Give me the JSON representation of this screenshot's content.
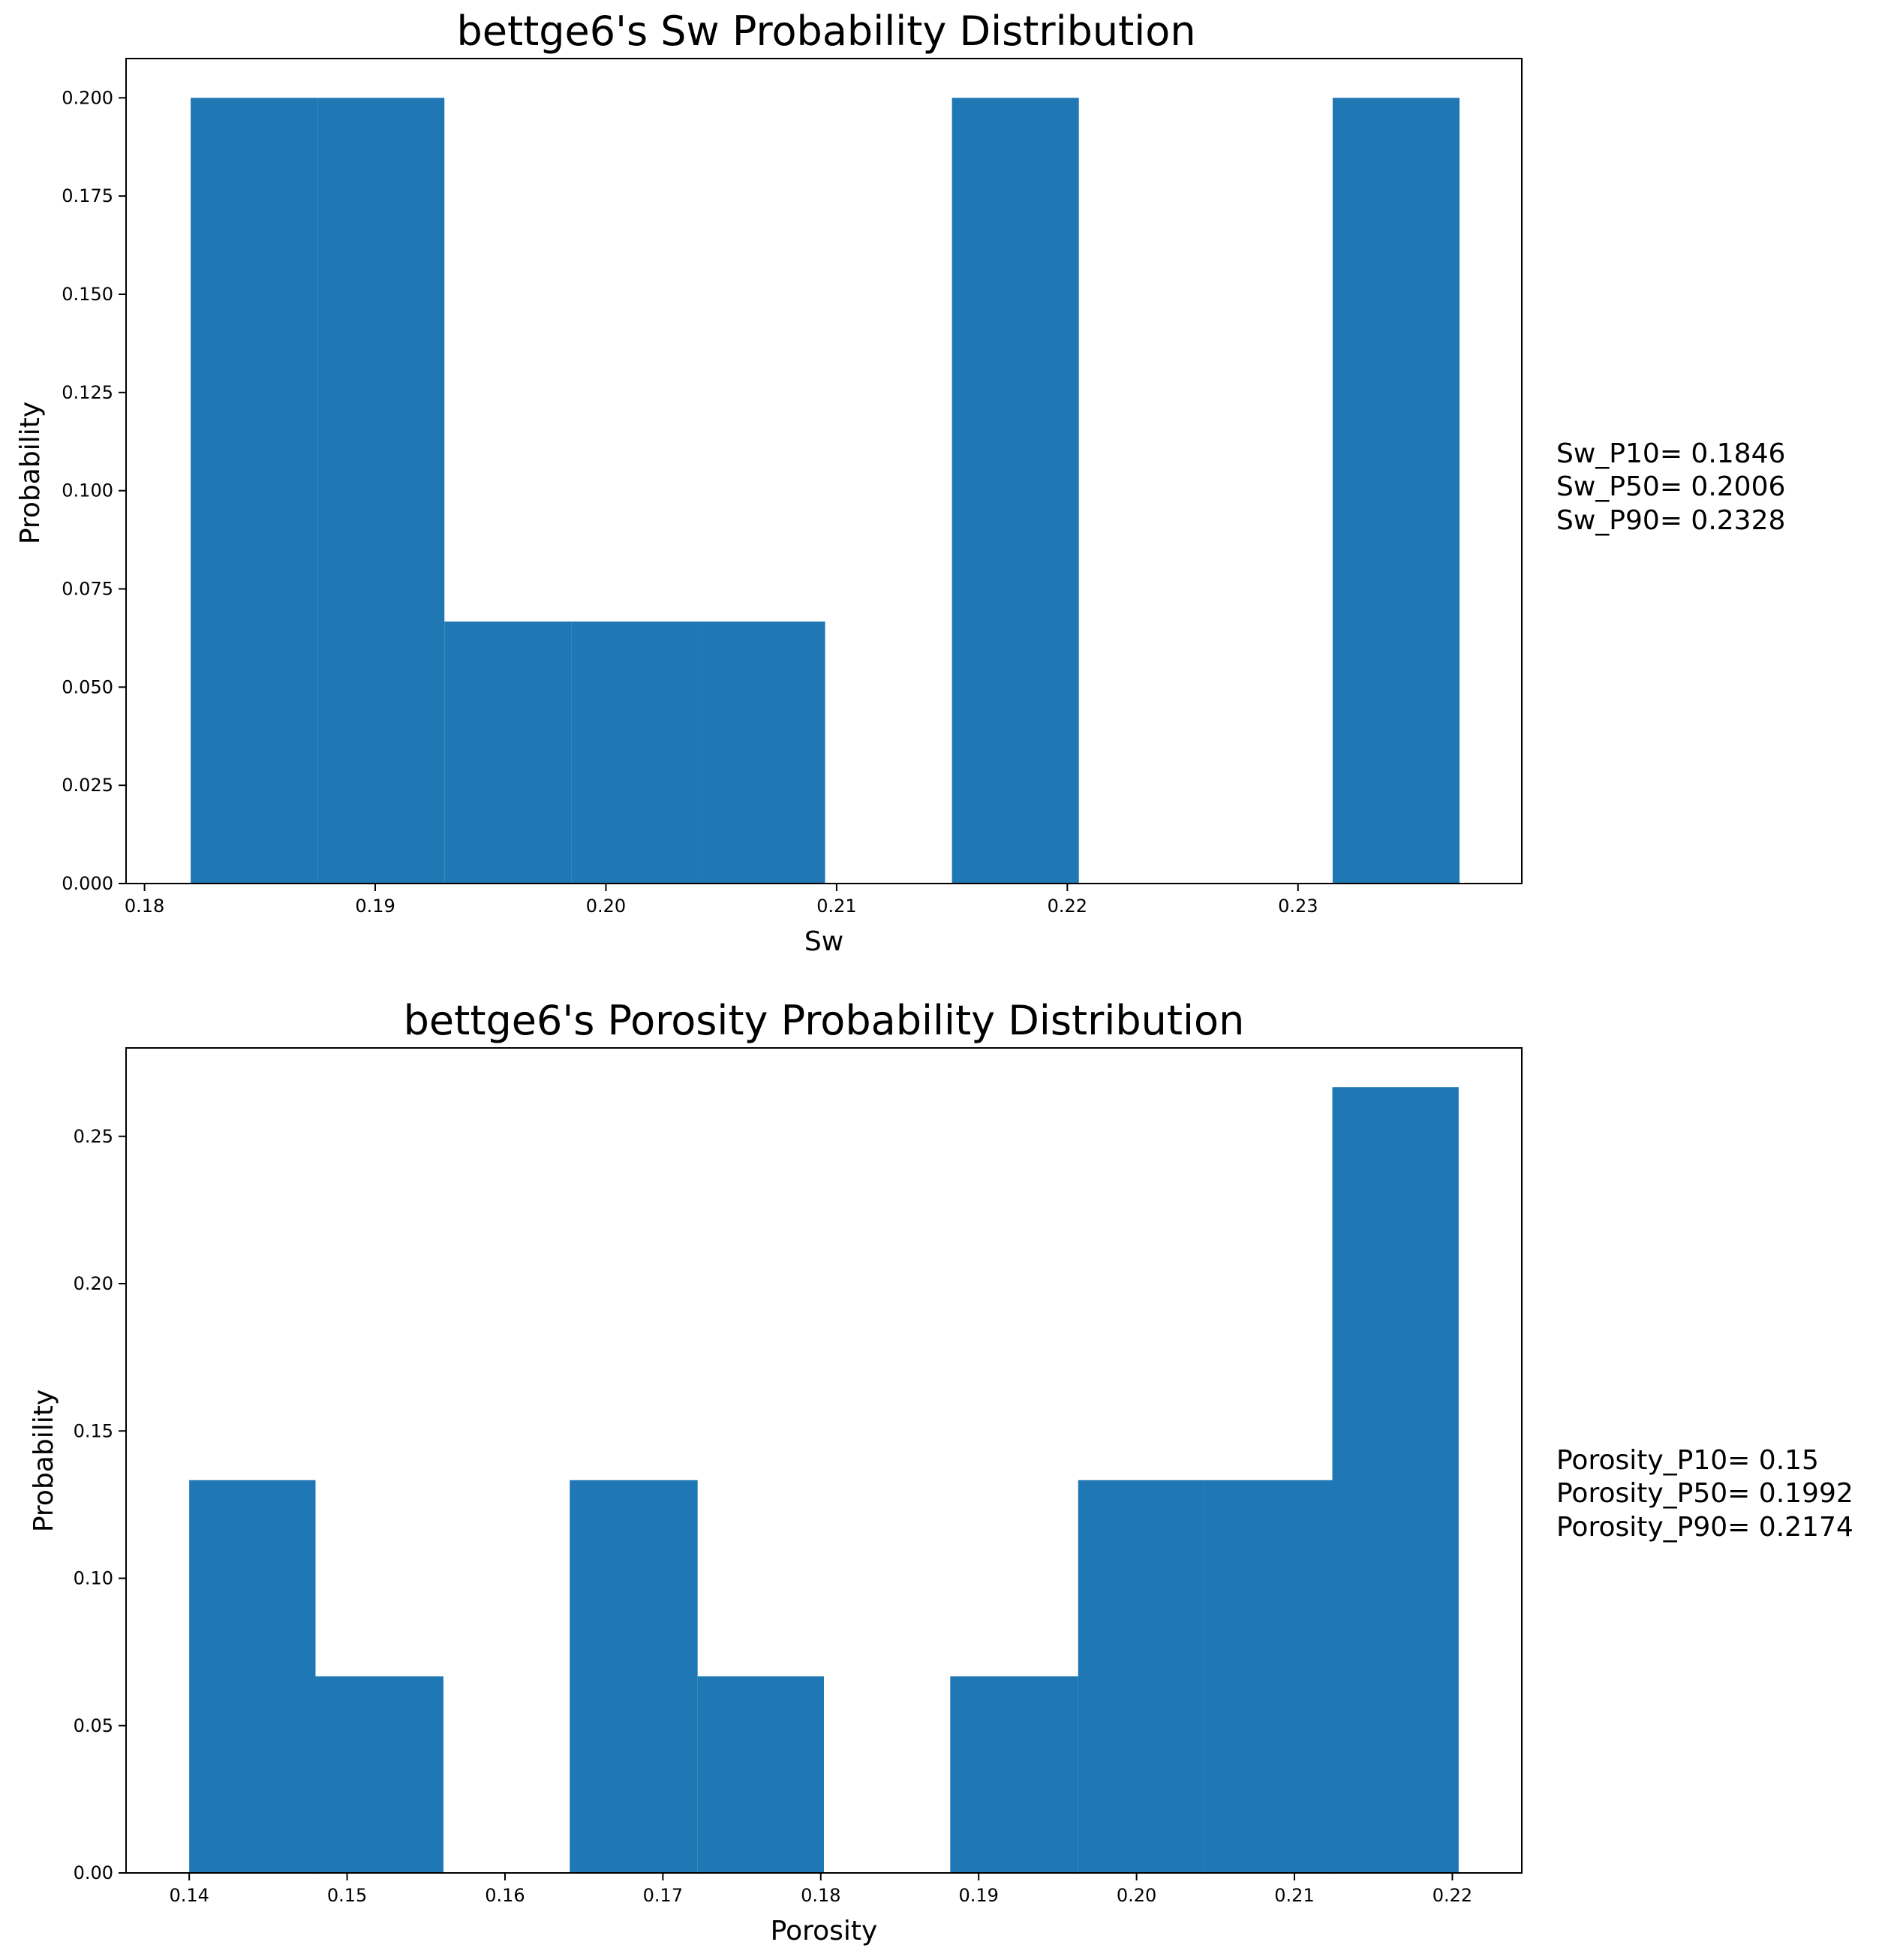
{
  "chart_data": [
    {
      "type": "bar",
      "title": "bettge6's Sw Probability Distribution",
      "xlabel": "Sw",
      "ylabel": "Probability",
      "xlim": [
        0.1792,
        0.2397
      ],
      "ylim": [
        0,
        0.21
      ],
      "grid": false,
      "color": "#1f77b4",
      "bins": [
        {
          "x0": 0.182,
          "x1": 0.1875,
          "value": 0.2
        },
        {
          "x0": 0.1875,
          "x1": 0.193,
          "value": 0.2
        },
        {
          "x0": 0.193,
          "x1": 0.1985,
          "value": 0.0667
        },
        {
          "x0": 0.1985,
          "x1": 0.204,
          "value": 0.0667
        },
        {
          "x0": 0.204,
          "x1": 0.2095,
          "value": 0.0667
        },
        {
          "x0": 0.2095,
          "x1": 0.215,
          "value": 0
        },
        {
          "x0": 0.215,
          "x1": 0.2205,
          "value": 0.2
        },
        {
          "x0": 0.2205,
          "x1": 0.226,
          "value": 0
        },
        {
          "x0": 0.226,
          "x1": 0.2315,
          "value": 0
        },
        {
          "x0": 0.2315,
          "x1": 0.237,
          "value": 0.2
        }
      ],
      "xticks": [
        0.18,
        0.19,
        0.2,
        0.21,
        0.22,
        0.23
      ],
      "xtick_labels": [
        "0.18",
        "0.19",
        "0.20",
        "0.21",
        "0.22",
        "0.23"
      ],
      "yticks": [
        0,
        0.025,
        0.05,
        0.075,
        0.1,
        0.125,
        0.15,
        0.175,
        0.2
      ],
      "ytick_labels": [
        "0.000",
        "0.025",
        "0.050",
        "0.075",
        "0.100",
        "0.125",
        "0.150",
        "0.175",
        "0.200"
      ],
      "annotations": [
        "Sw_P10= 0.1846",
        "Sw_P50= 0.2006",
        "Sw_P90= 0.2328"
      ]
    },
    {
      "type": "bar",
      "title": "bettge6's Porosity Probability Distribution",
      "xlabel": "Porosity",
      "ylabel": "Probability",
      "xlim": [
        0.136,
        0.2244
      ],
      "ylim": [
        0,
        0.28
      ],
      "grid": false,
      "color": "#1f77b4",
      "bins": [
        {
          "x0": 0.14,
          "x1": 0.148,
          "value": 0.1333
        },
        {
          "x0": 0.148,
          "x1": 0.1561,
          "value": 0.0667
        },
        {
          "x0": 0.1561,
          "x1": 0.1641,
          "value": 0
        },
        {
          "x0": 0.1641,
          "x1": 0.1722,
          "value": 0.1333
        },
        {
          "x0": 0.1722,
          "x1": 0.1802,
          "value": 0.0667
        },
        {
          "x0": 0.1802,
          "x1": 0.1882,
          "value": 0
        },
        {
          "x0": 0.1882,
          "x1": 0.1963,
          "value": 0.0667
        },
        {
          "x0": 0.1963,
          "x1": 0.2043,
          "value": 0.1333
        },
        {
          "x0": 0.2043,
          "x1": 0.2124,
          "value": 0.1333
        },
        {
          "x0": 0.2124,
          "x1": 0.2204,
          "value": 0.2667
        }
      ],
      "xticks": [
        0.14,
        0.15,
        0.16,
        0.17,
        0.18,
        0.19,
        0.2,
        0.21,
        0.22
      ],
      "xtick_labels": [
        "0.14",
        "0.15",
        "0.16",
        "0.17",
        "0.18",
        "0.19",
        "0.20",
        "0.21",
        "0.22"
      ],
      "yticks": [
        0,
        0.05,
        0.1,
        0.15,
        0.2,
        0.25
      ],
      "ytick_labels": [
        "0.00",
        "0.05",
        "0.10",
        "0.15",
        "0.20",
        "0.25"
      ],
      "annotations": [
        "Porosity_P10= 0.15",
        "Porosity_P50= 0.1992",
        "Porosity_P90= 0.2174"
      ]
    }
  ]
}
